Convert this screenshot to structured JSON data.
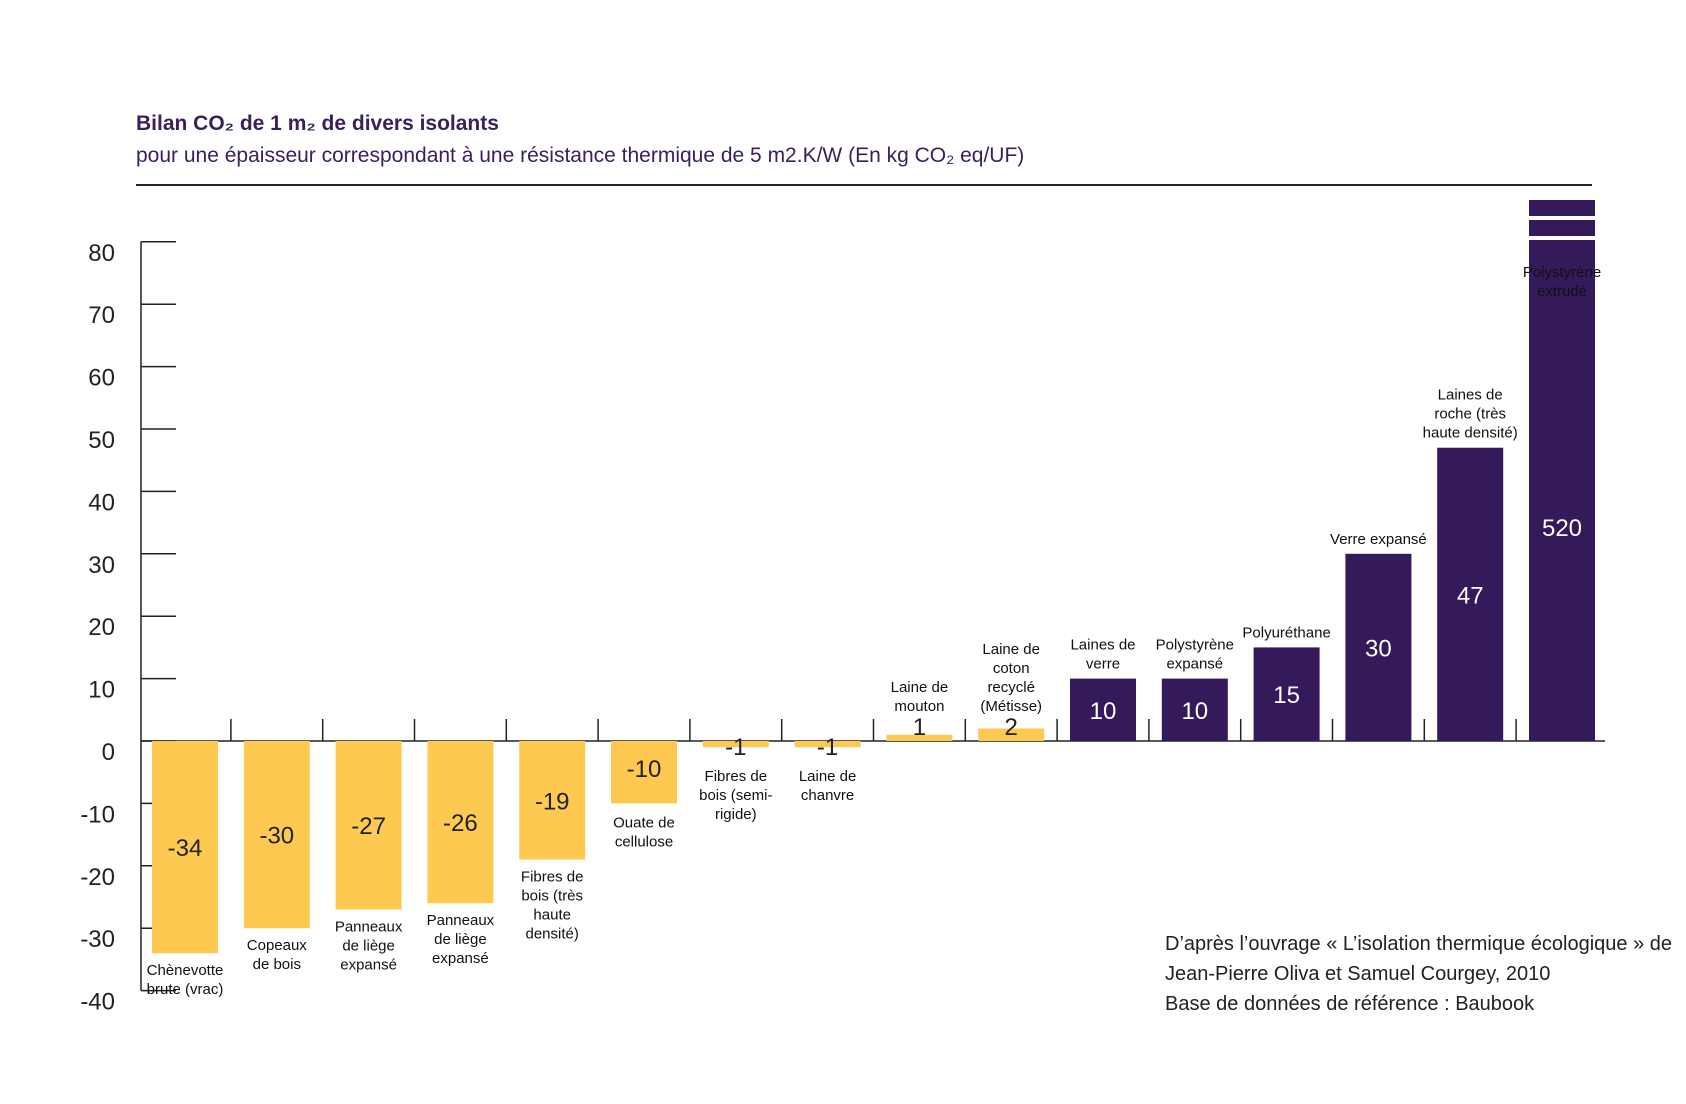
{
  "header": {
    "title": "Bilan CO₂ de 1 m₂ de divers isolants",
    "subtitle": "pour une épaisseur correspondant à une résistance thermique de 5 m2.K/W (En kg CO₂ eq/UF)"
  },
  "source": {
    "line1": "D’après l’ouvrage « L’isolation thermique écologique » de",
    "line2": "Jean-Pierre Oliva et Samuel Courgey, 2010",
    "line3": "Base de données de référence : Baubook"
  },
  "colors": {
    "negative": "#fdc951",
    "positive": "#341a5a",
    "axis": "#222222",
    "title": "#3a1f5c"
  },
  "chart_data": {
    "type": "bar",
    "title": "Bilan CO₂ de 1 m₂ de divers isolants",
    "subtitle": "pour une épaisseur correspondant à une résistance thermique de 5 m2.K/W (En kg CO₂ eq/UF)",
    "ylim": [
      -40,
      80
    ],
    "yticks": [
      80,
      70,
      60,
      50,
      40,
      30,
      20,
      10,
      0,
      -10,
      -20,
      -30,
      -40
    ],
    "grid": false,
    "axis_break": {
      "category_index": 15,
      "note": "bar truncated above 80 (broken scale)"
    },
    "categories": [
      [
        "Chènevotte",
        "brute (vrac)"
      ],
      [
        "Copeaux",
        "de bois"
      ],
      [
        "Panneaux",
        "de liège",
        "expansé"
      ],
      [
        "Panneaux",
        "de liège",
        "expansé"
      ],
      [
        "Fibres de",
        "bois (très",
        "haute",
        "densité)"
      ],
      [
        "Ouate de",
        "cellulose"
      ],
      [
        "Fibres de",
        "bois (semi-",
        "rigide)"
      ],
      [
        "Laine de",
        "chanvre"
      ],
      [
        "Laine de",
        "mouton"
      ],
      [
        "Laine de",
        "coton",
        "recyclé",
        "(Métisse)"
      ],
      [
        "Laines de",
        "verre"
      ],
      [
        "Polystyrène",
        "expansé"
      ],
      [
        "Polyuréthane"
      ],
      [
        "Verre expansé"
      ],
      [
        "Laines de",
        "roche (très",
        "haute densité)"
      ],
      [
        "Polystyrène",
        "extrudé"
      ]
    ],
    "values": [
      -34,
      -30,
      -27,
      -26,
      -19,
      -10,
      -1,
      -1,
      1,
      2,
      10,
      10,
      15,
      30,
      47,
      520
    ],
    "value_labels": [
      "-34",
      "-30",
      "-27",
      "-26",
      "-19",
      "-10",
      "-1",
      "-1",
      "1",
      "2",
      "10",
      "10",
      "15",
      "30",
      "47",
      "520"
    ]
  }
}
